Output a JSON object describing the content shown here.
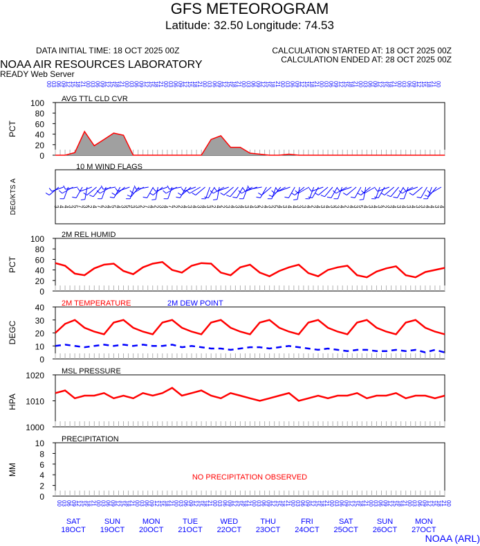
{
  "header": {
    "title": "GFS METEOROGRAM",
    "location": "Latitude: 32.50 Longitude:  74.53",
    "init_time": "DATA INITIAL TIME: 18 OCT 2025 00Z",
    "calc_started": "CALCULATION STARTED AT: 18 OCT 2025 00Z",
    "calc_ended": "CALCULATION ENDED AT: 28 OCT 2025 00Z",
    "lab": "NOAA AIR RESOURCES LABORATORY",
    "server": "READY Web Server",
    "credit": "NOAA (ARL)"
  },
  "colors": {
    "red": "#ff0000",
    "blue": "#0000ff",
    "grid": "#b0b0b0",
    "fill": "#a0a0a0"
  },
  "chart_data": [
    {
      "type": "area",
      "title": "AVG TTL CLD CVR",
      "ylabel": "PCT",
      "ylim": [
        0,
        100
      ],
      "yticks": [
        "100",
        "80",
        "60",
        "40",
        "20",
        "0"
      ],
      "x_hours": [
        0,
        6,
        12,
        18,
        24,
        30,
        36,
        42,
        48,
        54,
        60,
        66,
        72,
        78,
        84,
        90,
        96,
        102,
        108,
        114,
        120,
        126,
        132,
        138,
        144,
        150,
        156,
        162,
        168,
        174,
        180,
        186,
        192,
        198,
        204,
        210,
        216,
        222,
        228,
        234,
        240
      ],
      "values": [
        0,
        0,
        5,
        45,
        18,
        30,
        42,
        38,
        0,
        0,
        0,
        0,
        0,
        0,
        0,
        0,
        30,
        37,
        15,
        15,
        4,
        2,
        0,
        0,
        2,
        0,
        0,
        0,
        0,
        0,
        0,
        0,
        0,
        0,
        0,
        0,
        0,
        0,
        0,
        0,
        0
      ]
    },
    {
      "type": "wind_flags",
      "title": "10 M  WIND FLAGS",
      "ylabel": "DEG/KTS  A",
      "speeds_kts": [
        "3",
        "4",
        "4",
        "3",
        "5",
        "7",
        "3",
        "2",
        "4",
        "7",
        "2",
        "4",
        "5",
        "4",
        "3",
        "5",
        "3",
        "3",
        "2",
        "7",
        "4",
        "2",
        "3",
        "4",
        "7",
        "2",
        "2",
        "4",
        "3",
        "4",
        "3",
        "4",
        "3",
        "2",
        "4",
        "2",
        "3",
        "4",
        "3",
        "4",
        "3",
        "4",
        "3",
        "2",
        "4",
        "3",
        "5",
        "4",
        "3",
        "4",
        "4",
        "3",
        "3",
        "4",
        "2",
        "4",
        "3",
        "4",
        "3",
        "3",
        "4",
        "2",
        "4",
        "3",
        "5",
        "4",
        "3",
        "4",
        "3",
        "2",
        "3",
        "4",
        "3",
        "4",
        "3",
        "4",
        "3",
        "3",
        "4",
        "4",
        "3",
        "4"
      ],
      "directions_deg": [
        230,
        250,
        200,
        240,
        260,
        210,
        190,
        250,
        230,
        220,
        200,
        240,
        260,
        210,
        230,
        250,
        200,
        220,
        240,
        260,
        210,
        190,
        230,
        250,
        200,
        240,
        260,
        210,
        230,
        250,
        240,
        230,
        200,
        210,
        190,
        240,
        250,
        230,
        220,
        210,
        200,
        240,
        250,
        260,
        210,
        230,
        200,
        220,
        240,
        250,
        210,
        190,
        230,
        240,
        200,
        210,
        250,
        230,
        220,
        210,
        200,
        240,
        250,
        230,
        210,
        190,
        230,
        240,
        200,
        210,
        250,
        230,
        220,
        210,
        200,
        240,
        250,
        230,
        210,
        200,
        220,
        240
      ]
    },
    {
      "type": "line",
      "title": "2M REL HUMID",
      "ylabel": "PCT",
      "ylim": [
        0,
        100
      ],
      "yticks": [
        "100",
        "80",
        "60",
        "40",
        "20",
        "0"
      ],
      "x_hours": [
        0,
        6,
        12,
        18,
        24,
        30,
        36,
        42,
        48,
        54,
        60,
        66,
        72,
        78,
        84,
        90,
        96,
        102,
        108,
        114,
        120,
        126,
        132,
        138,
        144,
        150,
        156,
        162,
        168,
        174,
        180,
        186,
        192,
        198,
        204,
        210,
        216,
        222,
        228,
        234,
        240
      ],
      "values": [
        53,
        48,
        33,
        30,
        43,
        50,
        52,
        38,
        32,
        45,
        52,
        55,
        40,
        35,
        48,
        53,
        52,
        35,
        30,
        45,
        50,
        35,
        28,
        38,
        45,
        50,
        34,
        28,
        40,
        45,
        48,
        30,
        26,
        37,
        43,
        47,
        30,
        26,
        36,
        40,
        44
      ]
    },
    {
      "type": "line",
      "title": "2M TEMPERATURE",
      "title2": "2M  DEW POINT",
      "ylabel": "DEGC",
      "ylim": [
        0,
        40
      ],
      "yticks": [
        "40",
        "30",
        "20",
        "10",
        "0"
      ],
      "x_hours": [
        0,
        6,
        12,
        18,
        24,
        30,
        36,
        42,
        48,
        54,
        60,
        66,
        72,
        78,
        84,
        90,
        96,
        102,
        108,
        114,
        120,
        126,
        132,
        138,
        144,
        150,
        156,
        162,
        168,
        174,
        180,
        186,
        192,
        198,
        204,
        210,
        216,
        222,
        228,
        234,
        240
      ],
      "series": [
        {
          "name": "2M TEMPERATURE",
          "values": [
            20,
            27,
            30,
            24,
            21,
            19,
            28,
            30,
            24,
            21,
            19,
            28,
            30,
            24,
            21,
            19,
            28,
            30,
            24,
            21,
            19,
            28,
            30,
            24,
            21,
            19,
            28,
            30,
            24,
            21,
            19,
            28,
            30,
            24,
            21,
            19,
            28,
            30,
            24,
            21,
            19
          ]
        },
        {
          "name": "2M  DEW POINT",
          "values": [
            10,
            11,
            10,
            9,
            10,
            11,
            10,
            11,
            10,
            11,
            10,
            10,
            11,
            9,
            10,
            9,
            8,
            8,
            7,
            8,
            9,
            9,
            8,
            9,
            10,
            9,
            8,
            7,
            8,
            7,
            6,
            7,
            7,
            6,
            6,
            7,
            6,
            7,
            5,
            7,
            5
          ]
        }
      ]
    },
    {
      "type": "line",
      "title": "MSL PRESSURE",
      "ylabel": "HPA",
      "ylim": [
        1000,
        1020
      ],
      "yticks": [
        "1020",
        "1010",
        "1000"
      ],
      "x_hours": [
        0,
        6,
        12,
        18,
        24,
        30,
        36,
        42,
        48,
        54,
        60,
        66,
        72,
        78,
        84,
        90,
        96,
        102,
        108,
        114,
        120,
        126,
        132,
        138,
        144,
        150,
        156,
        162,
        168,
        174,
        180,
        186,
        192,
        198,
        204,
        210,
        216,
        222,
        228,
        234,
        240
      ],
      "values": [
        1013,
        1014,
        1011,
        1012,
        1012,
        1013,
        1011,
        1012,
        1011,
        1013,
        1012,
        1013,
        1015,
        1012,
        1013,
        1014,
        1012,
        1011,
        1013,
        1012,
        1011,
        1010,
        1011,
        1012,
        1013,
        1010,
        1011,
        1012,
        1011,
        1012,
        1012,
        1013,
        1011,
        1012,
        1012,
        1013,
        1011,
        1012,
        1012,
        1011,
        1012
      ]
    },
    {
      "type": "line",
      "title": "PRECIPITATION",
      "ylabel": "MM",
      "ylim": [
        0,
        10
      ],
      "yticks": [
        "10",
        "8",
        "6",
        "4",
        "2",
        "0"
      ],
      "note": "NO PRECIPITATION OBSERVED",
      "values": []
    }
  ],
  "x_axis": {
    "hour_labels": [
      "00",
      "03",
      "06",
      "09",
      "12",
      "15",
      "18",
      "21",
      "00",
      "03",
      "06",
      "09",
      "12",
      "15",
      "18",
      "21",
      "00",
      "03",
      "06",
      "09",
      "12",
      "15",
      "18",
      "21",
      "00",
      "03",
      "06",
      "09",
      "12",
      "15",
      "18",
      "21",
      "00",
      "03",
      "06",
      "09",
      "12",
      "15",
      "18",
      "21",
      "00",
      "03",
      "06",
      "09",
      "12",
      "15",
      "18",
      "21",
      "00",
      "03",
      "06",
      "09",
      "12",
      "15",
      "18",
      "21",
      "00",
      "03",
      "06",
      "09",
      "12",
      "15",
      "18",
      "21",
      "00",
      "03",
      "06",
      "09",
      "12",
      "15",
      "18",
      "21",
      "00",
      "03",
      "06",
      "09",
      "12",
      "15",
      "18",
      "21",
      "00"
    ],
    "days": [
      {
        "dow": "SAT",
        "date": "18OCT"
      },
      {
        "dow": "SUN",
        "date": "19OCT"
      },
      {
        "dow": "MON",
        "date": "20OCT"
      },
      {
        "dow": "TUE",
        "date": "21OCT"
      },
      {
        "dow": "WED",
        "date": "22OCT"
      },
      {
        "dow": "THU",
        "date": "23OCT"
      },
      {
        "dow": "FRI",
        "date": "24OCT"
      },
      {
        "dow": "SAT",
        "date": "25OCT"
      },
      {
        "dow": "SUN",
        "date": "26OCT"
      },
      {
        "dow": "MON",
        "date": "27OCT"
      }
    ]
  }
}
